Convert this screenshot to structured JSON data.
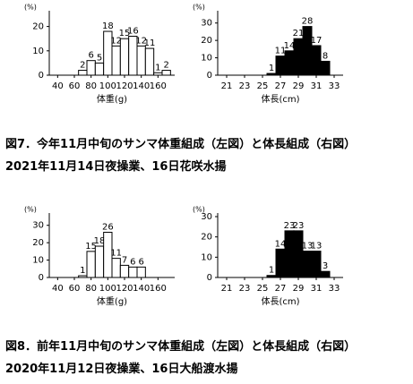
{
  "chart_data": [
    {
      "type": "histogram",
      "y_label": "(%)",
      "x_label": "体重(g)",
      "color": "#ffffff",
      "bins": [
        65,
        75,
        85,
        95,
        105,
        115,
        125,
        135,
        145,
        155,
        165,
        175
      ],
      "values": [
        2,
        6,
        5,
        18,
        12,
        15,
        16,
        12,
        11,
        1,
        2
      ],
      "xlim": [
        30,
        180
      ],
      "xticks": [
        40,
        60,
        80,
        100,
        120,
        140,
        160
      ],
      "ylim": [
        0,
        25
      ],
      "yticks": [
        0,
        10,
        20
      ]
    },
    {
      "type": "histogram",
      "y_label": "(%)",
      "x_label": "体長(cm)",
      "color": "#000000",
      "bins": [
        25.5,
        26.5,
        27.5,
        28.5,
        29.5,
        30.5,
        31.5,
        32.5
      ],
      "values": [
        1,
        11,
        14,
        21,
        28,
        17,
        8
      ],
      "xlim": [
        20,
        34
      ],
      "xticks": [
        21,
        23,
        25,
        27,
        29,
        31,
        33
      ],
      "ylim": [
        0,
        35
      ],
      "yticks": [
        0,
        10,
        20,
        30
      ]
    },
    {
      "type": "histogram",
      "y_label": "(%)",
      "x_label": "体重(g)",
      "color": "#ffffff",
      "bins": [
        65,
        75,
        85,
        95,
        105,
        115,
        125,
        135,
        145
      ],
      "values": [
        1,
        15,
        18,
        26,
        11,
        7,
        6,
        6
      ],
      "xlim": [
        30,
        180
      ],
      "xticks": [
        40,
        60,
        80,
        100,
        120,
        140,
        160
      ],
      "ylim": [
        0,
        35
      ],
      "yticks": [
        0,
        10,
        20,
        30
      ]
    },
    {
      "type": "histogram",
      "y_label": "(%)",
      "x_label": "体長(cm)",
      "color": "#000000",
      "bins": [
        25.5,
        26.5,
        27.5,
        28.5,
        29.5,
        30.5,
        31.5,
        32.5
      ],
      "values": [
        1,
        14,
        23,
        23,
        13,
        13,
        3
      ],
      "xlim": [
        20,
        34
      ],
      "xticks": [
        21,
        23,
        25,
        27,
        29,
        31,
        33
      ],
      "ylim": [
        0,
        30
      ],
      "yticks": [
        0,
        10,
        20,
        30
      ]
    }
  ],
  "captions": [
    {
      "title": "図7．今年11月中旬のサンマ体重組成（左図）と体長組成（右図）",
      "subtitle": "2021年11月14日夜操業、16日花咲水揚"
    },
    {
      "title": "図8．前年11月中旬のサンマ体重組成（左図）と体長組成（右図）",
      "subtitle": "2020年11月12日夜操業、16日大船渡水揚"
    }
  ]
}
